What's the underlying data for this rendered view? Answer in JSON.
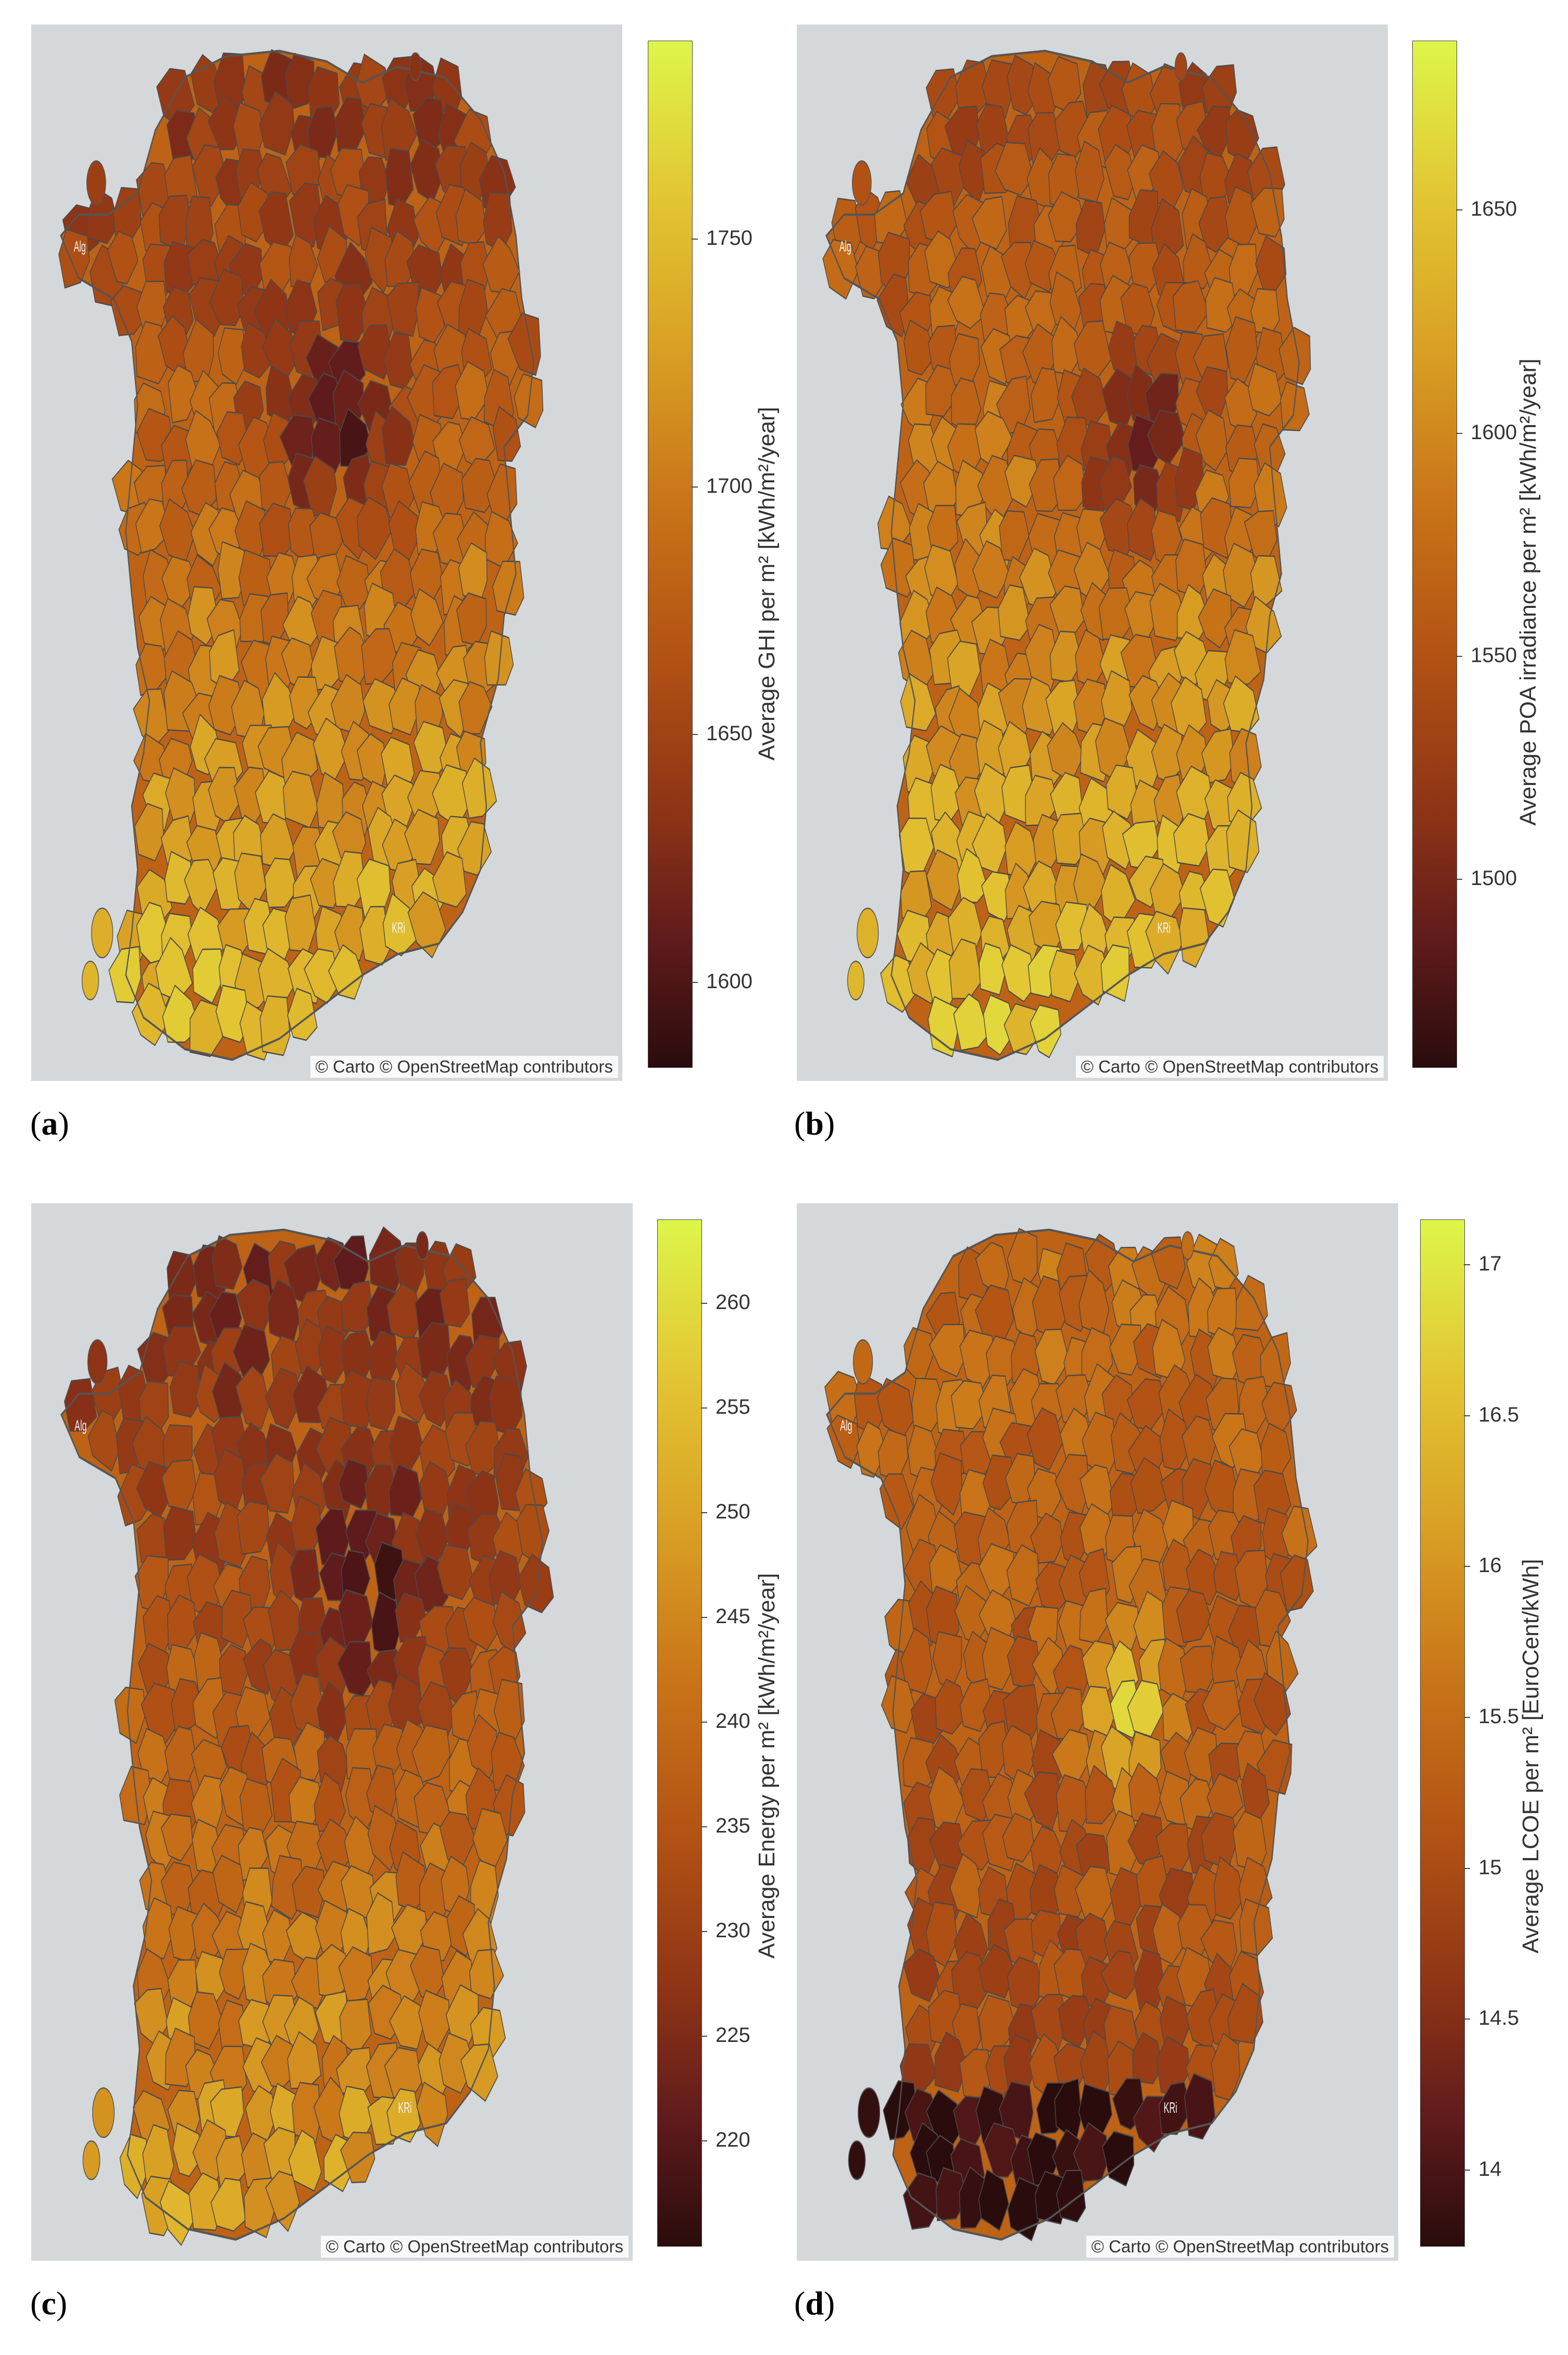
{
  "attribution": "© Carto © OpenStreetMap contributors",
  "map_labels": {
    "alg": "Alg",
    "kri": "KRi"
  },
  "gradient_colors": [
    "#2a0c0c",
    "#5e1a1c",
    "#8e3416",
    "#b25214",
    "#c97418",
    "#d9a024",
    "#e3c633",
    "#ddf64a"
  ],
  "panels": [
    {
      "label_open": "(",
      "label_letter": "a",
      "label_close": ")",
      "colorbar_title": "Average GHI per m² [kWh/m²/year]",
      "ticks": [
        "1750",
        "1700",
        "1650",
        "1600"
      ],
      "tick_values": [
        1750,
        1700,
        1650,
        1600
      ],
      "range": [
        1583,
        1790
      ]
    },
    {
      "label_open": "(",
      "label_letter": "b",
      "label_close": ")",
      "colorbar_title": "Average POA irradiance per m² [kWh/m²/year]",
      "ticks": [
        "1650",
        "1600",
        "1550",
        "1500"
      ],
      "tick_values": [
        1650,
        1600,
        1550,
        1500
      ],
      "range": [
        1458,
        1688
      ]
    },
    {
      "label_open": "(",
      "label_letter": "c",
      "label_close": ")",
      "colorbar_title": "Average Energy per m² [kWh/m²/year]",
      "ticks": [
        "260",
        "255",
        "250",
        "245",
        "240",
        "235",
        "230",
        "225",
        "220"
      ],
      "tick_values": [
        260,
        255,
        250,
        245,
        240,
        235,
        230,
        225,
        220
      ],
      "range": [
        215,
        264
      ]
    },
    {
      "label_open": "(",
      "label_letter": "d",
      "label_close": ")",
      "colorbar_title": "Average LCOE per m² [EuroCent/kWh]",
      "ticks": [
        "17",
        "16.5",
        "16",
        "15.5",
        "15",
        "14.5",
        "14"
      ],
      "tick_values": [
        17,
        16.5,
        16,
        15.5,
        15,
        14.5,
        14
      ],
      "range": [
        13.75,
        17.15
      ]
    }
  ]
}
